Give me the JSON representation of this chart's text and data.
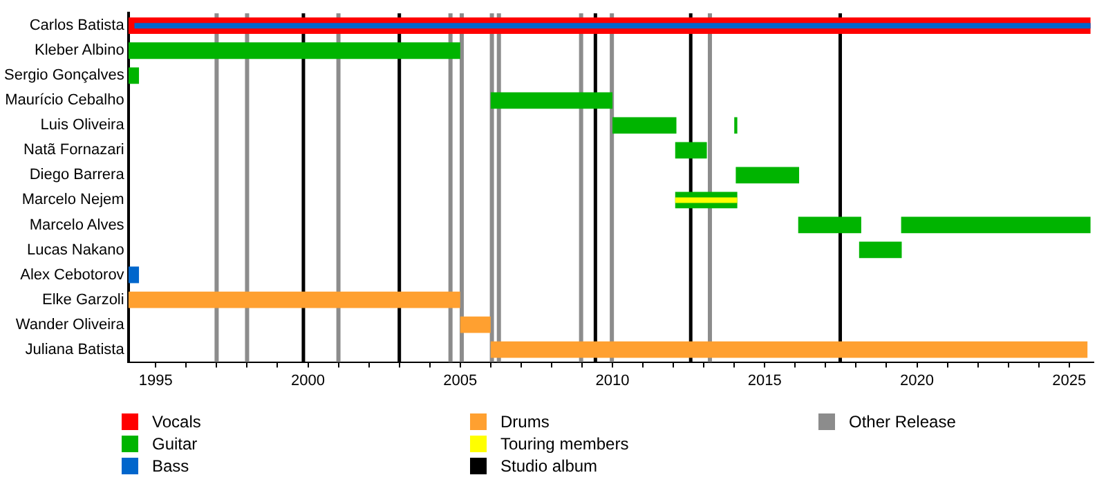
{
  "chart_data": {
    "type": "bar",
    "orientation": "horizontal",
    "categories": [
      "Carlos Batista",
      "Kleber Albino",
      "Sergio Gonçalves",
      "Maurício Cebalho",
      "Luis Oliveira",
      "Natã Fornazari",
      "Diego Barrera",
      "Marcelo Nejem",
      "Marcelo Alves",
      "Lucas Nakano",
      "Alex Cebotorov",
      "Elke Garzoli",
      "Wander Oliveira",
      "Juliana Batista"
    ],
    "series": [
      {
        "name": "Vocals",
        "color": "#ff0000",
        "base": [
          1994.1,
          null,
          null,
          null,
          null,
          null,
          null,
          null,
          null,
          null,
          null,
          null,
          null,
          null
        ],
        "values": [
          31.6,
          null,
          null,
          null,
          null,
          null,
          null,
          null,
          null,
          null,
          null,
          null,
          null,
          null
        ]
      },
      {
        "name": "Guitar",
        "color": "#00b400",
        "base": [
          null,
          1994.1,
          1994.1,
          2006.0,
          2010.0,
          2012.06,
          2014.05,
          2012.06,
          2016.1,
          2018.1,
          null,
          null,
          null,
          null
        ],
        "values": [
          null,
          10.9,
          0.35,
          4.0,
          2.1,
          1.04,
          2.08,
          2.04,
          2.07,
          1.4,
          null,
          null,
          null,
          null
        ]
      },
      {
        "color": "#00b400",
        "base": [
          null,
          null,
          null,
          null,
          2014.0,
          null,
          null,
          null,
          2019.48,
          null,
          null,
          null,
          null,
          null
        ],
        "values": [
          null,
          null,
          null,
          null,
          0.1,
          null,
          null,
          null,
          6.22,
          null,
          null,
          null,
          null,
          null
        ]
      },
      {
        "name": "Bass",
        "color": "#0066cc",
        "base": [
          null,
          null,
          null,
          null,
          null,
          null,
          null,
          null,
          null,
          null,
          1994.1,
          null,
          null,
          null
        ],
        "values": [
          null,
          null,
          null,
          null,
          null,
          null,
          null,
          null,
          null,
          null,
          0.35,
          null,
          null,
          null
        ]
      },
      {
        "color": "#0066cc",
        "base": [
          1994.3,
          null,
          null,
          null,
          null,
          null,
          null,
          null,
          null,
          null,
          null,
          null,
          null,
          null
        ],
        "values": [
          31.4,
          null,
          null,
          null,
          null,
          null,
          null,
          null,
          null,
          null,
          null,
          null,
          null,
          null
        ]
      },
      {
        "name": "Drums",
        "color": "#ffa030",
        "base": [
          null,
          null,
          null,
          null,
          null,
          null,
          null,
          null,
          null,
          null,
          null,
          1994.1,
          2005.0,
          2006.0
        ],
        "values": [
          null,
          null,
          null,
          null,
          null,
          null,
          null,
          null,
          null,
          null,
          null,
          10.9,
          1.0,
          19.6
        ]
      },
      {
        "name": "Touring members",
        "color": "#ffff00",
        "base": [
          null,
          null,
          null,
          null,
          null,
          null,
          null,
          2012.06,
          null,
          null,
          null,
          null,
          null,
          null
        ],
        "values": [
          null,
          null,
          null,
          null,
          null,
          null,
          null,
          2.04,
          null,
          null,
          null,
          null,
          null,
          null
        ]
      }
    ],
    "xlim": [
      1994.1,
      2025.8
    ],
    "xticks": [
      {
        "value": 1995,
        "label": "1995"
      },
      {
        "value": 1996,
        "label": null
      },
      {
        "value": 1997,
        "label": null
      },
      {
        "value": 1998,
        "label": null
      },
      {
        "value": 1999,
        "label": null
      },
      {
        "value": 2000,
        "label": "2000"
      },
      {
        "value": 2001,
        "label": null
      },
      {
        "value": 2002,
        "label": null
      },
      {
        "value": 2003,
        "label": null
      },
      {
        "value": 2004,
        "label": null
      },
      {
        "value": 2005,
        "label": "2005"
      },
      {
        "value": 2006,
        "label": null
      },
      {
        "value": 2007,
        "label": null
      },
      {
        "value": 2008,
        "label": null
      },
      {
        "value": 2009,
        "label": null
      },
      {
        "value": 2010,
        "label": "2010"
      },
      {
        "value": 2011,
        "label": null
      },
      {
        "value": 2012,
        "label": null
      },
      {
        "value": 2013,
        "label": null
      },
      {
        "value": 2014,
        "label": null
      },
      {
        "value": 2015,
        "label": "2015"
      },
      {
        "value": 2016,
        "label": null
      },
      {
        "value": 2017,
        "label": null
      },
      {
        "value": 2018,
        "label": null
      },
      {
        "value": 2019,
        "label": null
      },
      {
        "value": 2020,
        "label": "2020"
      },
      {
        "value": 2021,
        "label": null
      },
      {
        "value": 2022,
        "label": null
      },
      {
        "value": 2023,
        "label": null
      },
      {
        "value": 2024,
        "label": null
      },
      {
        "value": 2025,
        "label": "2025"
      }
    ],
    "ref_lines": [
      {
        "axis": "x",
        "value": 1999.85,
        "label": "Studio album",
        "color": "#000000"
      },
      {
        "axis": "x",
        "value": 2003.0,
        "color": "#000000"
      },
      {
        "axis": "x",
        "value": 2009.44,
        "color": "#000000"
      },
      {
        "axis": "x",
        "value": 2012.57,
        "color": "#000000"
      },
      {
        "axis": "x",
        "value": 2017.48,
        "color": "#000000"
      },
      {
        "axis": "x",
        "value": 1997.0,
        "label": "Other Release",
        "color": "#8c8c8c"
      },
      {
        "axis": "x",
        "value": 1998.0,
        "color": "#8c8c8c"
      },
      {
        "axis": "x",
        "value": 2001.0,
        "color": "#8c8c8c"
      },
      {
        "axis": "x",
        "value": 2004.68,
        "color": "#8c8c8c"
      },
      {
        "axis": "x",
        "value": 2005.05,
        "color": "#8c8c8c"
      },
      {
        "axis": "x",
        "value": 2006.04,
        "color": "#8c8c8c"
      },
      {
        "axis": "x",
        "value": 2006.27,
        "color": "#8c8c8c"
      },
      {
        "axis": "x",
        "value": 2008.97,
        "color": "#8c8c8c"
      },
      {
        "axis": "x",
        "value": 2009.98,
        "color": "#8c8c8c"
      },
      {
        "axis": "x",
        "value": 2013.2,
        "color": "#8c8c8c"
      }
    ],
    "grid": false,
    "legend": "bottom"
  }
}
